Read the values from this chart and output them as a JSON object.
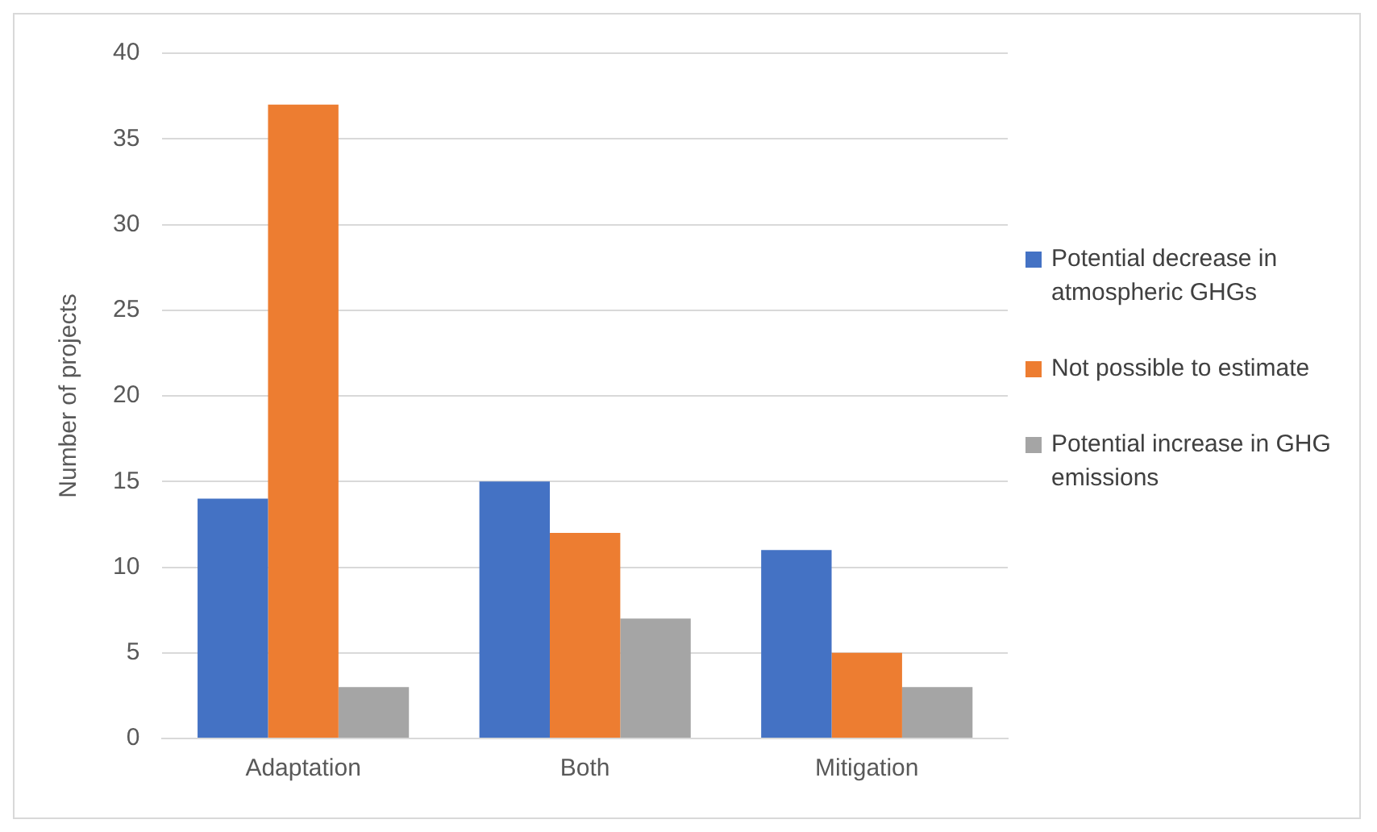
{
  "chart_data": {
    "type": "bar",
    "ylabel": "Number of projects",
    "categories": [
      "Adaptation",
      "Both",
      "Mitigation"
    ],
    "series": [
      {
        "name": "Potential decrease in atmospheric GHGs",
        "color": "#4472c4",
        "values": [
          14,
          15,
          11
        ]
      },
      {
        "name": "Not possible to estimate",
        "color": "#ed7d31",
        "values": [
          37,
          12,
          5
        ]
      },
      {
        "name": "Potential increase in GHG emissions",
        "color": "#a5a5a5",
        "values": [
          3,
          7,
          3
        ]
      }
    ],
    "ylim": [
      0,
      40
    ],
    "yticks": [
      0,
      5,
      10,
      15,
      20,
      25,
      30,
      35,
      40
    ],
    "grid": "y",
    "legend": "right"
  }
}
